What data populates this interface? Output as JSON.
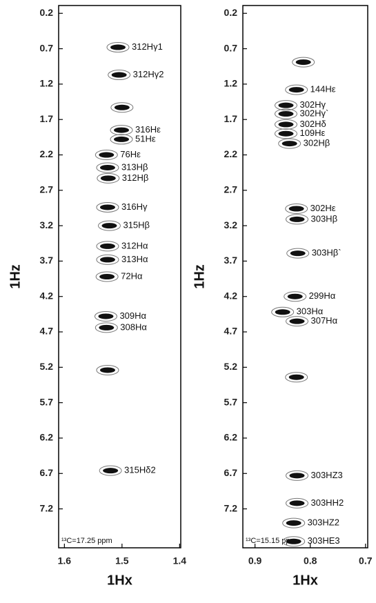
{
  "chart_data": [
    {
      "type": "contour",
      "y_reversed": true,
      "x_reversed": true,
      "xlabel": "1Hx",
      "ylabel": "1Hz",
      "annotation": "¹³C=17.25 ppm",
      "xlim": [
        1.61,
        1.398
      ],
      "xticks": [
        1.6,
        1.5,
        1.4
      ],
      "ylim": [
        0.09,
        7.75
      ],
      "yticks": [
        0.2,
        0.7,
        1.2,
        1.7,
        2.2,
        2.7,
        3.2,
        3.7,
        4.2,
        4.7,
        5.2,
        5.7,
        6.2,
        6.7,
        7.2
      ],
      "color": "#111111",
      "x": [
        1.507,
        1.505,
        1.5,
        1.501,
        1.501,
        1.527,
        1.525,
        1.524,
        1.525,
        1.522,
        1.525,
        1.525,
        1.526,
        1.528,
        1.527,
        1.525,
        1.52
      ],
      "values": [
        0.68,
        1.07,
        1.53,
        1.85,
        1.98,
        2.2,
        2.38,
        2.53,
        2.94,
        3.2,
        3.49,
        3.68,
        3.92,
        4.48,
        4.64,
        5.24,
        6.66
      ],
      "peak_labels": [
        "312Hγ1",
        "312Hγ2",
        null,
        "316Hε",
        "51Hε",
        "76Hε",
        "313Hβ",
        "312Hβ",
        "316Hγ",
        "315Hβ",
        "312Hα",
        "313Hα",
        "72Hα",
        "309Hα",
        "308Hα",
        null,
        "315Hδ2"
      ]
    },
    {
      "type": "contour",
      "y_reversed": true,
      "x_reversed": true,
      "xlabel": "1Hx",
      "ylabel": "1Hz",
      "annotation": "¹³C=15.15 ppm",
      "xlim": [
        0.922,
        0.696
      ],
      "xticks": [
        0.9,
        0.8,
        0.7
      ],
      "ylim": [
        0.09,
        7.75
      ],
      "yticks": [
        0.2,
        0.7,
        1.2,
        1.7,
        2.2,
        2.7,
        3.2,
        3.7,
        4.2,
        4.7,
        5.2,
        5.7,
        6.2,
        6.7,
        7.2
      ],
      "color": "#111111",
      "x": [
        0.8125,
        0.825,
        0.844,
        0.844,
        0.844,
        0.844,
        0.8375,
        0.825,
        0.824,
        0.8225,
        0.8275,
        0.85,
        0.824,
        0.825,
        0.824,
        0.824,
        0.83,
        0.83
      ],
      "values": [
        0.89,
        1.28,
        1.5,
        1.62,
        1.77,
        1.9,
        2.04,
        2.96,
        3.11,
        3.59,
        4.2,
        4.42,
        4.55,
        5.34,
        6.73,
        7.12,
        7.4,
        7.66
      ],
      "peak_labels": [
        null,
        "144Hε",
        "302Hγ",
        "302Hγ`",
        "302Hδ",
        "109Hε",
        "302Hβ",
        "302Hε",
        "303Hβ",
        "303Hβ`",
        "299Hα",
        "303Hα",
        "307Hα",
        null,
        "303HZ3",
        "303HH2",
        "303HZ2",
        "303HE3"
      ]
    }
  ]
}
